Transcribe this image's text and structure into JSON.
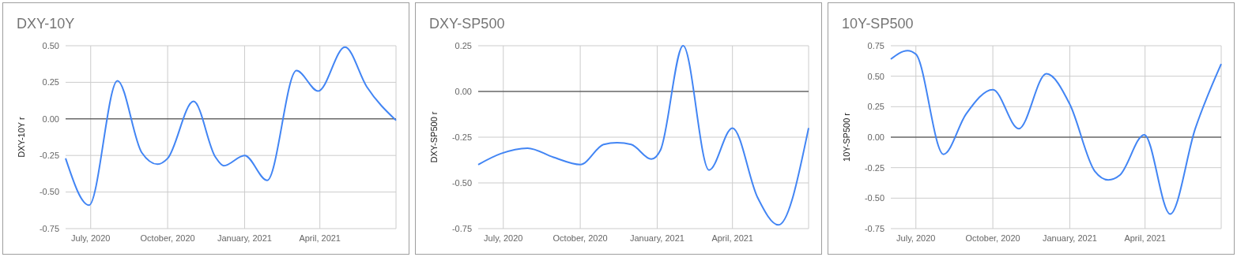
{
  "chart_data": [
    {
      "type": "line",
      "title": "DXY-10Y",
      "ylabel": "DXY-10Y r",
      "xlim": [
        "2020-06-01",
        "2021-07-01"
      ],
      "xticks": [
        {
          "value": "2020-07-01",
          "label": "July, 2020"
        },
        {
          "value": "2020-10-01",
          "label": "October, 2020"
        },
        {
          "value": "2021-01-01",
          "label": "January, 2021"
        },
        {
          "value": "2021-04-01",
          "label": "April, 2021"
        }
      ],
      "ylim": [
        -0.75,
        0.5
      ],
      "yticks": [
        {
          "value": -0.75,
          "label": "-0.75"
        },
        {
          "value": -0.5,
          "label": "-0.50"
        },
        {
          "value": -0.25,
          "label": "-0.25"
        },
        {
          "value": 0,
          "label": "0.00"
        },
        {
          "value": 0.25,
          "label": "0.25"
        },
        {
          "value": 0.5,
          "label": "0.50"
        }
      ],
      "grid": true,
      "ref_lines": [
        {
          "axis": "y",
          "value": 0,
          "color": "#333333"
        }
      ],
      "series": [
        {
          "color": "#4285f4",
          "x": [
            "2020-06-01",
            "2020-06-29",
            "2020-08-02",
            "2020-08-31",
            "2020-09-19",
            "2020-10-01",
            "2020-11-01",
            "2020-11-27",
            "2020-12-07",
            "2021-01-01",
            "2021-01-28",
            "2021-03-04",
            "2021-03-30",
            "2021-05-01",
            "2021-05-27",
            "2021-07-01"
          ],
          "values": [
            -0.27,
            -0.59,
            0.26,
            -0.23,
            -0.31,
            -0.27,
            0.12,
            -0.26,
            -0.32,
            -0.25,
            -0.42,
            0.33,
            0.19,
            0.49,
            0.22,
            -0.01
          ]
        }
      ]
    },
    {
      "type": "line",
      "title": "DXY-SP500",
      "ylabel": "DXY-SP500 r",
      "xlim": [
        "2020-06-01",
        "2021-07-01"
      ],
      "xticks": [
        {
          "value": "2020-07-01",
          "label": "July, 2020"
        },
        {
          "value": "2020-10-01",
          "label": "October, 2020"
        },
        {
          "value": "2021-01-01",
          "label": "January, 2021"
        },
        {
          "value": "2021-04-01",
          "label": "April, 2021"
        }
      ],
      "ylim": [
        -0.75,
        0.25
      ],
      "yticks": [
        {
          "value": -0.75,
          "label": "-0.75"
        },
        {
          "value": -0.5,
          "label": "-0.50"
        },
        {
          "value": -0.25,
          "label": "-0.25"
        },
        {
          "value": 0,
          "label": "0.00"
        },
        {
          "value": 0.25,
          "label": "0.25"
        }
      ],
      "grid": true,
      "ref_lines": [
        {
          "axis": "y",
          "value": 0,
          "color": "#333333"
        }
      ],
      "series": [
        {
          "color": "#4285f4",
          "x": [
            "2020-06-01",
            "2020-06-28",
            "2020-07-30",
            "2020-08-30",
            "2020-10-01",
            "2020-10-29",
            "2020-11-14",
            "2020-12-01",
            "2020-12-25",
            "2021-01-05",
            "2021-02-01",
            "2021-03-04",
            "2021-04-01",
            "2021-05-01",
            "2021-05-26",
            "2021-07-01"
          ],
          "values": [
            -0.4,
            -0.34,
            -0.31,
            -0.36,
            -0.4,
            -0.29,
            -0.28,
            -0.29,
            -0.37,
            -0.32,
            0.25,
            -0.43,
            -0.2,
            -0.58,
            -0.73,
            -0.2
          ]
        }
      ]
    },
    {
      "type": "line",
      "title": "10Y-SP500",
      "ylabel": "10Y-SP500 r",
      "xlim": [
        "2020-06-01",
        "2021-07-01"
      ],
      "xticks": [
        {
          "value": "2020-07-01",
          "label": "July, 2020"
        },
        {
          "value": "2020-10-01",
          "label": "October, 2020"
        },
        {
          "value": "2021-01-01",
          "label": "January, 2021"
        },
        {
          "value": "2021-04-01",
          "label": "April, 2021"
        }
      ],
      "ylim": [
        -0.75,
        0.75
      ],
      "yticks": [
        {
          "value": -0.75,
          "label": "-0.75"
        },
        {
          "value": -0.5,
          "label": "-0.50"
        },
        {
          "value": -0.25,
          "label": "-0.25"
        },
        {
          "value": 0,
          "label": "0.00"
        },
        {
          "value": 0.25,
          "label": "0.25"
        },
        {
          "value": 0.5,
          "label": "0.50"
        },
        {
          "value": 0.75,
          "label": "0.75"
        }
      ],
      "grid": true,
      "ref_lines": [
        {
          "axis": "y",
          "value": 0,
          "color": "#333333"
        }
      ],
      "series": [
        {
          "color": "#4285f4",
          "x": [
            "2020-06-01",
            "2020-06-21",
            "2020-07-01",
            "2020-08-03",
            "2020-08-30",
            "2020-10-01",
            "2020-11-01",
            "2020-12-04",
            "2021-01-01",
            "2021-01-31",
            "2021-02-16",
            "2021-03-02",
            "2021-03-31",
            "2021-05-01",
            "2021-05-31",
            "2021-07-01"
          ],
          "values": [
            0.64,
            0.71,
            0.68,
            -0.14,
            0.19,
            0.39,
            0.07,
            0.52,
            0.27,
            -0.28,
            -0.35,
            -0.31,
            0.02,
            -0.63,
            0.07,
            0.6
          ]
        }
      ]
    }
  ]
}
